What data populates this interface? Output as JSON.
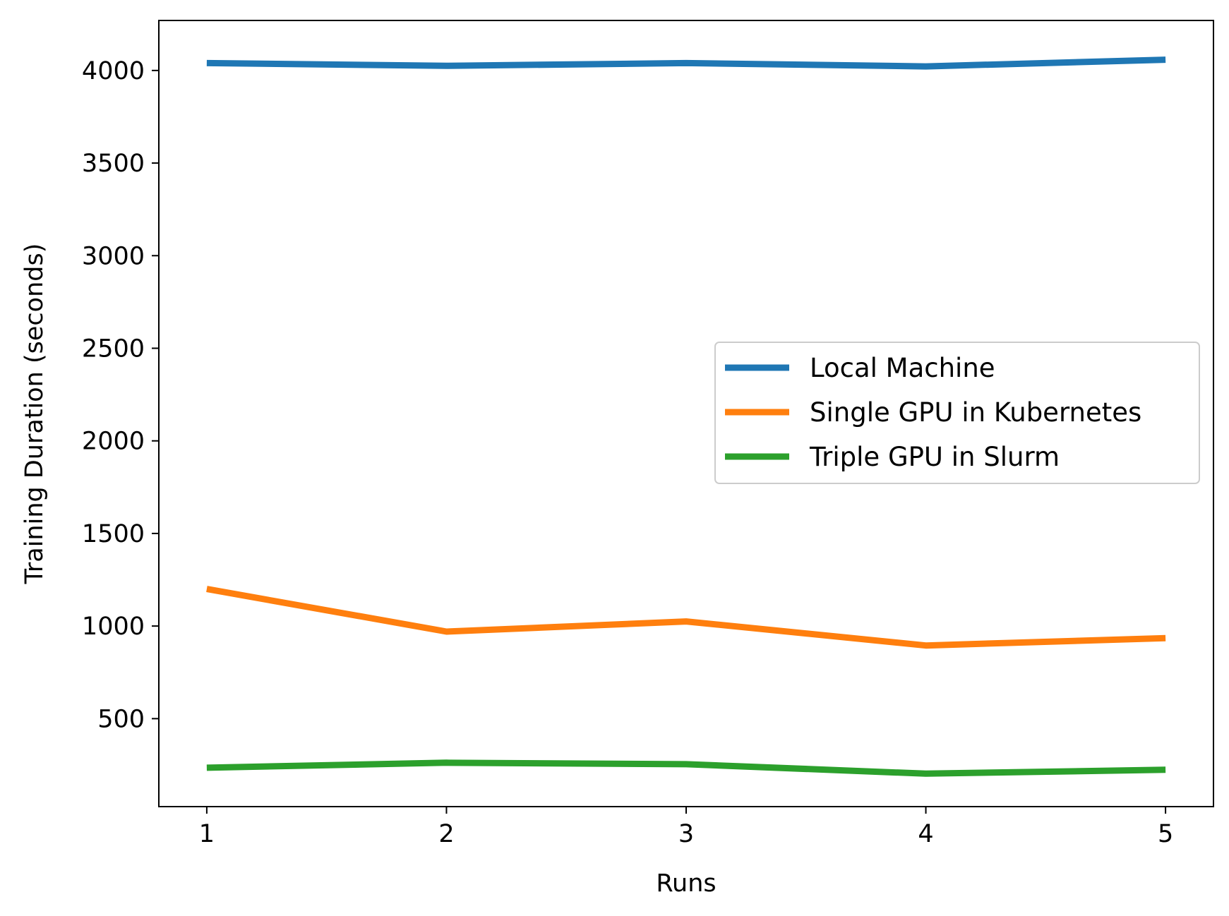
{
  "chart_data": {
    "type": "line",
    "xlabel": "Runs",
    "ylabel": "Training Duration (seconds)",
    "x": [
      1,
      2,
      3,
      4,
      5
    ],
    "xlim": [
      0.8,
      5.2
    ],
    "ylim": [
      25,
      4270
    ],
    "xticks": [
      "1",
      "2",
      "3",
      "4",
      "5"
    ],
    "yticks": [
      "500",
      "1000",
      "1500",
      "2000",
      "2500",
      "3000",
      "3500",
      "4000"
    ],
    "grid": false,
    "legend_position": "center-right",
    "series": [
      {
        "name": "Local Machine",
        "color": "#1f77b4",
        "values": [
          4040,
          4025,
          4040,
          4022,
          4058
        ]
      },
      {
        "name": "Single GPU in Kubernetes",
        "color": "#ff7f0e",
        "values": [
          1200,
          970,
          1025,
          895,
          935
        ]
      },
      {
        "name": "Triple GPU in Slurm",
        "color": "#2ca02c",
        "values": [
          235,
          262,
          254,
          203,
          224
        ]
      }
    ]
  }
}
